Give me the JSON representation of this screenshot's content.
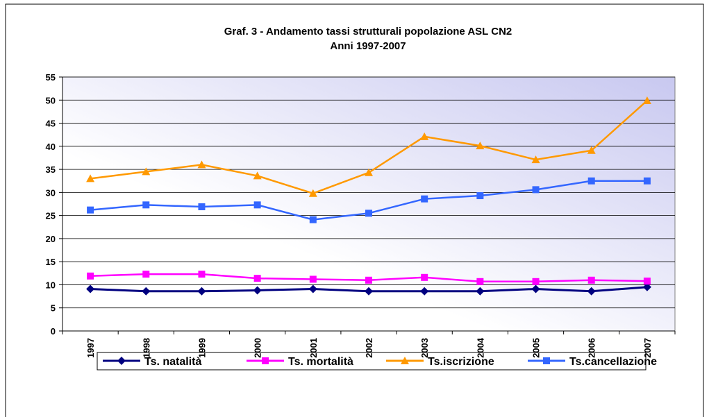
{
  "chart_data": {
    "type": "line",
    "title": "Graf. 3  - Andamento tassi strutturali popolazione ASL CN2",
    "subtitle": "Anni 1997-2007",
    "categories": [
      "1997",
      "1998",
      "1999",
      "2000",
      "2001",
      "2002",
      "2003",
      "2004",
      "2005",
      "2006",
      "2007"
    ],
    "series": [
      {
        "name": "Ts. natalità",
        "color": "#000080",
        "marker": "diamond",
        "values": [
          9.1,
          8.6,
          8.6,
          8.8,
          9.1,
          8.6,
          8.6,
          8.6,
          9.1,
          8.6,
          9.5
        ]
      },
      {
        "name": "Ts. mortalità",
        "color": "#ff00ff",
        "marker": "square",
        "values": [
          11.9,
          12.3,
          12.3,
          11.4,
          11.2,
          11.0,
          11.6,
          10.7,
          10.7,
          11.0,
          10.8
        ]
      },
      {
        "name": "Ts.iscrizione",
        "color": "#ff9900",
        "marker": "triangle",
        "values": [
          33.0,
          34.5,
          36.0,
          33.6,
          29.8,
          34.3,
          42.1,
          40.1,
          37.1,
          39.1,
          49.9
        ]
      },
      {
        "name": "Ts.cancellazione",
        "color": "#3366ff",
        "marker": "square",
        "values": [
          26.2,
          27.3,
          26.9,
          27.3,
          24.1,
          25.5,
          28.6,
          29.3,
          30.6,
          32.5,
          32.5
        ]
      }
    ],
    "ylim": [
      0,
      55
    ],
    "yticks": [
      0,
      5,
      10,
      15,
      20,
      25,
      30,
      35,
      40,
      45,
      50,
      55
    ],
    "grid": true,
    "legend": "bottom"
  }
}
